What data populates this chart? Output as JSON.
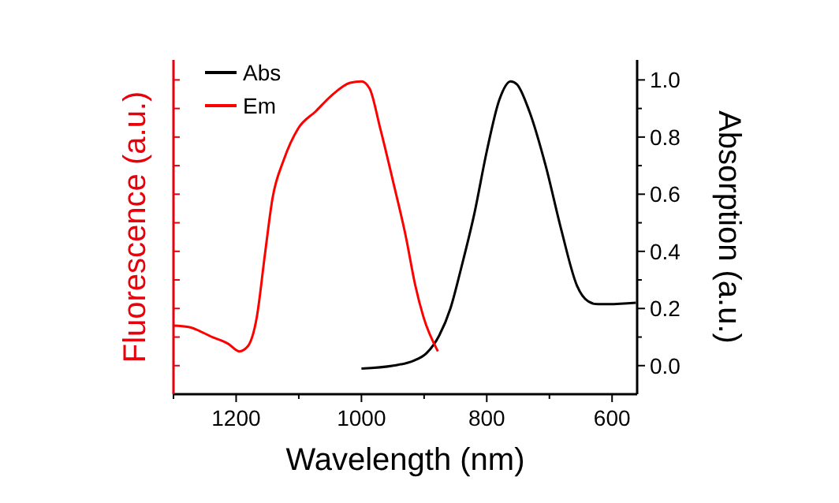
{
  "chart_data": {
    "type": "line",
    "xlabel": "Wavelength (nm)",
    "ylabel": "Absorption (a.u.)",
    "y2label": "Fluorescence (a.u.)",
    "xlim": [
      1300,
      560
    ],
    "xticks": [
      {
        "value": 1300,
        "label": null
      },
      1200,
      {
        "value": 1100,
        "label": null
      },
      1000,
      {
        "value": 900,
        "label": null
      },
      800,
      {
        "value": 700,
        "label": null
      },
      600
    ],
    "ylim": [
      -0.1,
      1.07
    ],
    "yticks": [
      {
        "value": 0,
        "label": "0.0"
      },
      {
        "value": 0.1,
        "label": null
      },
      {
        "value": 0.2,
        "label": "0.2"
      },
      {
        "value": 0.3,
        "label": null
      },
      {
        "value": 0.4,
        "label": "0.4"
      },
      {
        "value": 0.5,
        "label": null
      },
      {
        "value": 0.6,
        "label": "0.6"
      },
      {
        "value": 0.7,
        "label": null
      },
      {
        "value": 0.8,
        "label": "0.8"
      },
      {
        "value": 0.9,
        "label": null
      },
      {
        "value": 1,
        "label": "1.0"
      }
    ],
    "legend": "top left",
    "grid": false,
    "series": [
      {
        "name": "Abs",
        "color": "#000000",
        "x": [
          1000,
          949,
          917,
          896,
          876,
          858,
          841,
          820,
          800,
          780,
          762,
          752,
          732,
          706,
          681,
          656,
          638,
          623,
          605,
          562
        ],
        "values": [
          -0.01,
          0,
          0.017,
          0.044,
          0.105,
          0.2,
          0.34,
          0.53,
          0.75,
          0.93,
          0.995,
          0.985,
          0.89,
          0.7,
          0.475,
          0.28,
          0.225,
          0.215,
          0.215,
          0.22
        ]
      },
      {
        "name": "Em",
        "color": "#ff0000",
        "x": [
          1300,
          1276,
          1238,
          1213,
          1195,
          1182,
          1167,
          1154,
          1142,
          1124,
          1101,
          1073,
          1048,
          1018,
          1000,
          987,
          970,
          949,
          929,
          914,
          901,
          878
        ],
        "values": [
          0.14,
          0.135,
          0.1,
          0.077,
          0.05,
          0.066,
          0.17,
          0.39,
          0.585,
          0.72,
          0.83,
          0.89,
          0.945,
          0.99,
          0.995,
          0.97,
          0.83,
          0.64,
          0.45,
          0.28,
          0.17,
          0.05
        ]
      }
    ]
  }
}
